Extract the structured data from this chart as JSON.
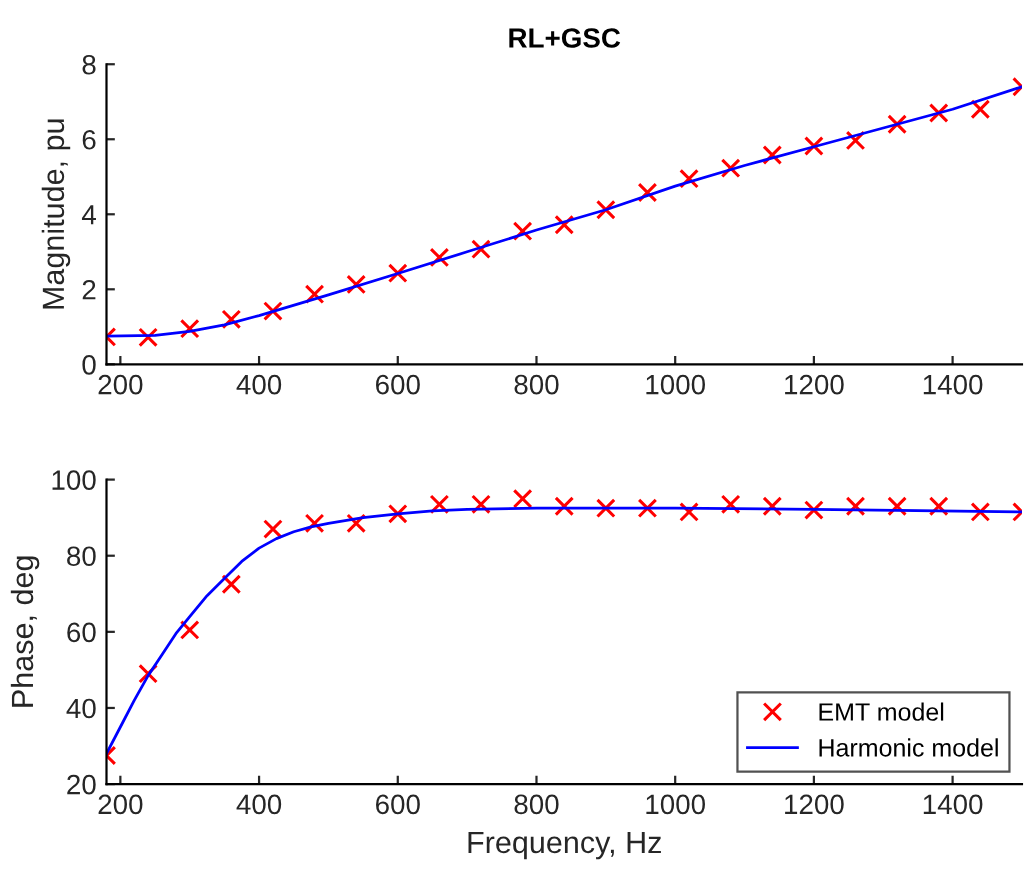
{
  "chart_data": [
    {
      "type": "line",
      "title": "RL+GSC",
      "ylabel": "Magnitude, pu",
      "xlim": [
        180,
        1500
      ],
      "xticks": [
        200,
        400,
        600,
        800,
        1000,
        1200,
        1400
      ],
      "ylim": [
        0,
        8
      ],
      "yticks": [
        0,
        2,
        4,
        6,
        8
      ],
      "grid": false,
      "legend": false,
      "series": [
        {
          "type": "scatter",
          "marker": "cross",
          "color": "#ff0000",
          "x": [
            180,
            240,
            300,
            360,
            420,
            480,
            540,
            600,
            660,
            720,
            780,
            840,
            900,
            960,
            1020,
            1080,
            1140,
            1200,
            1260,
            1320,
            1380,
            1440,
            1500
          ],
          "values": [
            0.73,
            0.72,
            0.95,
            1.2,
            1.42,
            1.87,
            2.13,
            2.43,
            2.85,
            3.07,
            3.55,
            3.72,
            4.12,
            4.58,
            4.95,
            5.23,
            5.58,
            5.82,
            5.97,
            6.4,
            6.7,
            6.8,
            7.4
          ]
        },
        {
          "color": "#0000ff",
          "x": [
            180,
            250,
            300,
            350,
            400,
            500,
            600,
            700,
            800,
            900,
            1000,
            1100,
            1200,
            1300,
            1400,
            1500
          ],
          "values": [
            0.75,
            0.77,
            0.88,
            1.05,
            1.3,
            1.85,
            2.42,
            3.0,
            3.58,
            4.12,
            4.75,
            5.3,
            5.8,
            6.3,
            6.8,
            7.4
          ]
        }
      ]
    },
    {
      "type": "line",
      "xlabel": "Frequency, Hz",
      "ylabel": "Phase, deg",
      "xlim": [
        180,
        1500
      ],
      "xticks": [
        200,
        400,
        600,
        800,
        1000,
        1200,
        1400
      ],
      "ylim": [
        20,
        100
      ],
      "yticks": [
        20,
        40,
        60,
        80,
        100
      ],
      "grid": false,
      "legend": "bottom right",
      "series": [
        {
          "type": "scatter",
          "name": "EMT model",
          "marker": "cross",
          "color": "#ff0000",
          "x": [
            180,
            240,
            300,
            360,
            420,
            480,
            540,
            600,
            660,
            720,
            780,
            840,
            900,
            960,
            1020,
            1080,
            1140,
            1200,
            1260,
            1320,
            1380,
            1440,
            1500
          ],
          "values": [
            27.5,
            49,
            60.5,
            72.5,
            87,
            88.5,
            88.5,
            91,
            93.5,
            93.5,
            95,
            93,
            92.5,
            92.5,
            91.5,
            93.5,
            93,
            92,
            93,
            93,
            93,
            91.5,
            91.5
          ]
        },
        {
          "name": "Harmonic model",
          "color": "#0000ff",
          "x": [
            180,
            200,
            220,
            240,
            260,
            280,
            300,
            325,
            350,
            375,
            400,
            425,
            450,
            475,
            500,
            550,
            600,
            650,
            700,
            800,
            1000,
            1200,
            1500
          ],
          "values": [
            28,
            35,
            42,
            48.5,
            54,
            59.5,
            64,
            69.5,
            74,
            78.5,
            82,
            84.5,
            86.3,
            87.6,
            88.5,
            90,
            91,
            91.8,
            92.2,
            92.5,
            92.5,
            92.2,
            91.5
          ]
        }
      ]
    }
  ]
}
